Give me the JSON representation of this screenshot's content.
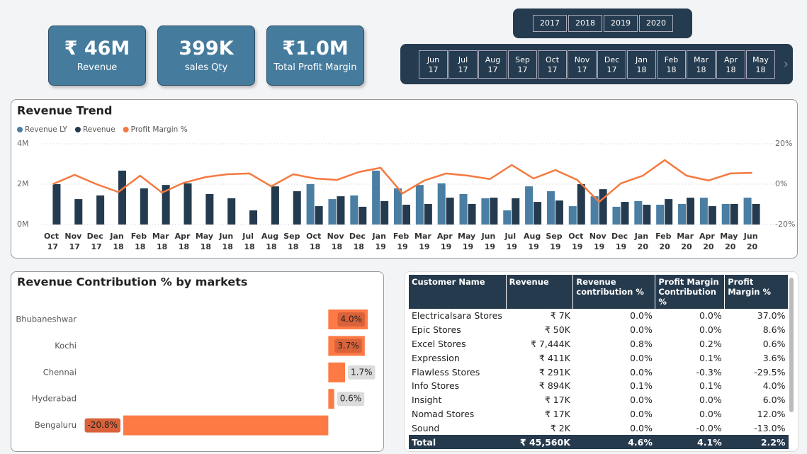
{
  "cards": [
    {
      "value": "₹ 46M",
      "label": "Revenue"
    },
    {
      "value": "399K",
      "label": "sales Qty"
    },
    {
      "value": "₹1.0M",
      "label": "Total Profit Margin"
    }
  ],
  "year_slicer": [
    "2017",
    "2018",
    "2019",
    "2020"
  ],
  "month_slicer": [
    "Jun 17",
    "Jul 17",
    "Aug 17",
    "Sep 17",
    "Oct 17",
    "Nov 17",
    "Dec 17",
    "Jan 18",
    "Feb 18",
    "Mar 18",
    "Apr 18",
    "May 18"
  ],
  "chart_data": [
    {
      "type": "combo",
      "title": "Revenue Trend",
      "categories": [
        "Oct 17",
        "Nov 17",
        "Dec 17",
        "Jan 18",
        "Feb 18",
        "Mar 18",
        "Apr 18",
        "May 18",
        "Jun 18",
        "Jul 18",
        "Aug 18",
        "Sep 18",
        "Oct 18",
        "Nov 18",
        "Dec 18",
        "Jan 19",
        "Feb 19",
        "Mar 19",
        "Apr 19",
        "May 19",
        "Jun 19",
        "Jul 19",
        "Aug 19",
        "Sep 19",
        "Oct 19",
        "Nov 19",
        "Dec 19",
        "Jan 20",
        "Feb 20",
        "Mar 20",
        "Apr 20",
        "May 20",
        "Jun 20"
      ],
      "series": [
        {
          "name": "Revenue LY",
          "kind": "bar",
          "color": "#4a7ea3",
          "values": [
            null,
            null,
            null,
            null,
            null,
            null,
            null,
            null,
            null,
            null,
            null,
            null,
            2.0,
            1.26,
            1.44,
            2.67,
            1.79,
            1.96,
            2.04,
            1.51,
            1.3,
            0.7,
            1.89,
            1.65,
            0.91,
            1.4,
            0.88,
            1.16,
            0.98,
            1.02,
            1.33,
            1.02,
            1.33
          ]
        },
        {
          "name": "Revenue",
          "kind": "bar",
          "color": "#243a4f",
          "values": [
            2.0,
            1.26,
            1.44,
            2.67,
            1.79,
            1.96,
            2.04,
            1.51,
            1.3,
            0.7,
            1.89,
            1.65,
            0.91,
            1.4,
            0.88,
            1.16,
            0.98,
            1.02,
            1.33,
            1.02,
            1.33,
            1.3,
            1.12,
            1.19,
            2.0,
            1.75,
            1.12,
            0.98,
            1.26,
            1.33,
            0.91,
            1.02,
            1.02
          ]
        },
        {
          "name": "Profit Margin %",
          "kind": "line",
          "axis": "y2",
          "color": "#f5793f",
          "values": [
            0,
            4.6,
            0,
            -3.9,
            4.2,
            -4.2,
            0.7,
            3.5,
            4.9,
            5.3,
            -1.1,
            4.9,
            2.8,
            2.1,
            6.0,
            8.1,
            -4.6,
            1.8,
            5.3,
            4.2,
            2.5,
            9.5,
            2.8,
            7.0,
            2.1,
            -8.8,
            0.4,
            4.2,
            11.9,
            4.2,
            1.8,
            5.3,
            5.6
          ]
        }
      ],
      "ylim": [
        0,
        4
      ],
      "yticks": [
        {
          "value": 0,
          "label": "0M"
        },
        {
          "value": 2,
          "label": "2M"
        },
        {
          "value": 4,
          "label": "4M"
        }
      ],
      "y2lim": [
        -20,
        20
      ],
      "y2ticks": [
        {
          "value": -20,
          "label": "-20%"
        },
        {
          "value": 0,
          "label": "0%"
        },
        {
          "value": 20,
          "label": "20%"
        }
      ],
      "grid": true
    },
    {
      "type": "hbar",
      "title": "Revenue Contribution % by markets",
      "color": "#fd7a45",
      "categories": [
        "Bhubaneshwar",
        "Kochi",
        "Chennai",
        "Hyderabad",
        "Bengaluru"
      ],
      "values": [
        4.0,
        3.7,
        1.7,
        0.6,
        -20.8
      ],
      "value_labels": [
        "4.0%",
        "3.7%",
        "1.7%",
        "0.6%",
        "-20.8%"
      ]
    }
  ],
  "table": {
    "headers": [
      "Customer Name",
      "Revenue",
      "Revenue contribution %",
      "Profit Margin Contribution %",
      "Profit Margin %"
    ],
    "rows": [
      [
        "Electricalsara Stores",
        "₹ 7K",
        "0.0%",
        "0.0%",
        "37.0%"
      ],
      [
        "Epic Stores",
        "₹ 50K",
        "0.0%",
        "0.0%",
        "8.6%"
      ],
      [
        "Excel Stores",
        "₹ 7,444K",
        "0.8%",
        "0.2%",
        "0.6%"
      ],
      [
        "Expression",
        "₹ 411K",
        "0.0%",
        "0.1%",
        "3.6%"
      ],
      [
        "Flawless Stores",
        "₹ 291K",
        "0.0%",
        "-0.3%",
        "-29.5%"
      ],
      [
        "Info Stores",
        "₹ 894K",
        "0.1%",
        "0.1%",
        "4.0%"
      ],
      [
        "Insight",
        "₹ 17K",
        "0.0%",
        "0.0%",
        "6.0%"
      ],
      [
        "Nomad Stores",
        "₹ 17K",
        "0.0%",
        "0.0%",
        "12.0%"
      ],
      [
        "Sound",
        "₹ 2K",
        "0.0%",
        "-0.0%",
        "-13.0%"
      ]
    ],
    "total": [
      "Total",
      "₹ 45,560K",
      "4.6%",
      "4.1%",
      "2.2%"
    ]
  }
}
